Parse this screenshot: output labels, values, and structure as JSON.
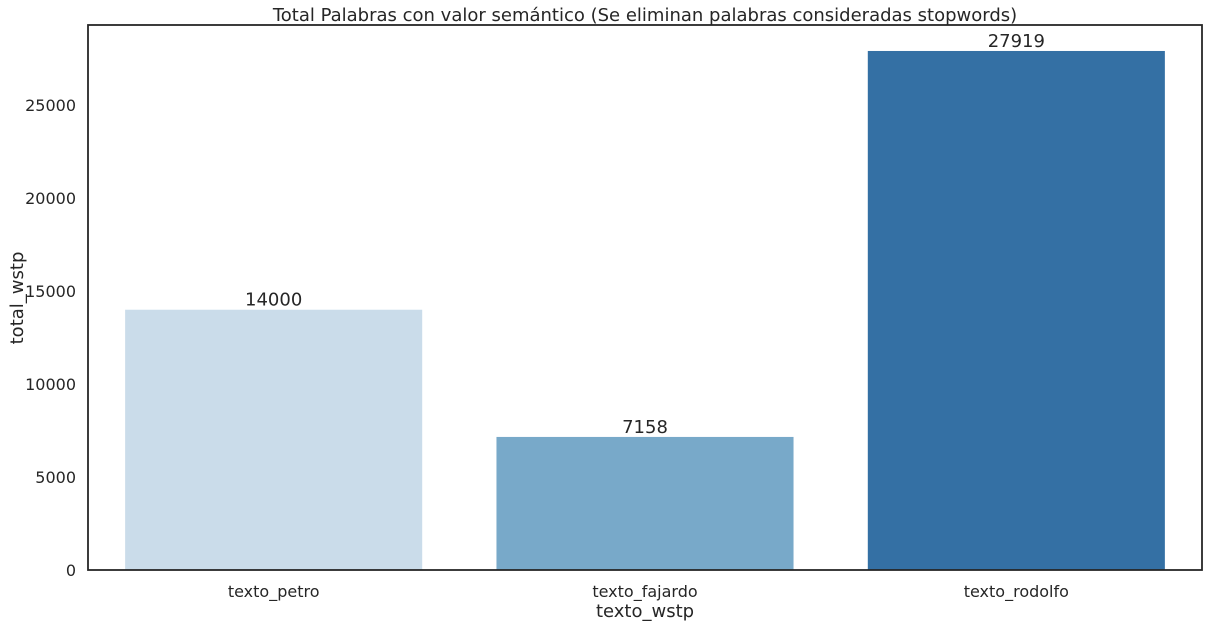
{
  "chart_data": {
    "type": "bar",
    "title": "Total Palabras con valor semántico (Se eliminan palabras consideradas stopwords)",
    "xlabel": "texto_wstp",
    "ylabel": "total_wstp",
    "categories": [
      "texto_petro",
      "texto_fajardo",
      "texto_rodolfo"
    ],
    "values": [
      14000,
      7158,
      27919
    ],
    "data_labels": [
      "14000",
      "7158",
      "27919"
    ],
    "colors": [
      "#cadcea",
      "#78a9c9",
      "#3470a4"
    ],
    "ylim": [
      0,
      29316
    ],
    "yticks": [
      0,
      5000,
      10000,
      15000,
      20000,
      25000
    ],
    "ytick_labels": [
      "0",
      "5000",
      "10000",
      "15000",
      "20000",
      "25000"
    ],
    "grid": false,
    "legend": "none"
  }
}
